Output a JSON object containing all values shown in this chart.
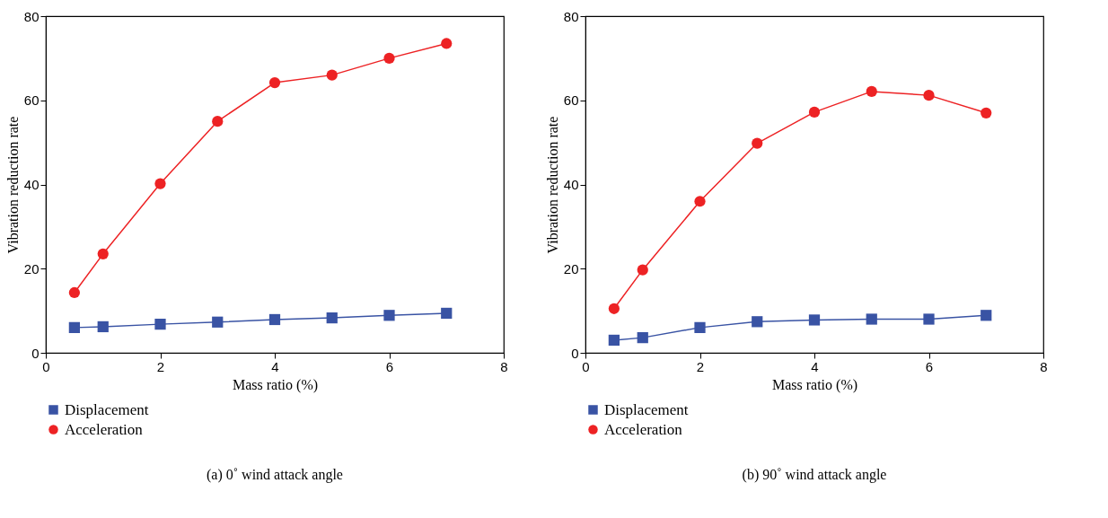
{
  "chart_data": [
    {
      "type": "line",
      "title": "(a)  0˚ wind attack angle",
      "xlabel": "Mass ratio (%)",
      "ylabel": "Vibration reduction rate",
      "x": [
        0.5,
        1,
        2,
        3,
        4,
        5,
        6,
        7
      ],
      "xlim": [
        0,
        8
      ],
      "xticks": [
        0,
        2,
        4,
        6,
        8
      ],
      "ylim": [
        0,
        80
      ],
      "yticks": [
        0,
        20,
        40,
        60,
        80
      ],
      "grid": false,
      "legend": "bottom",
      "line_style": "solid",
      "series": [
        {
          "name": "Displacement",
          "color": "#3953a4",
          "marker": "square",
          "values": [
            6.0,
            6.2,
            6.8,
            7.3,
            7.9,
            8.3,
            8.9,
            9.4
          ]
        },
        {
          "name": "Acceleration",
          "color": "#ed2224",
          "marker": "circle",
          "values": [
            14.3,
            23.5,
            40.2,
            55.0,
            64.2,
            66.0,
            70.0,
            73.5
          ]
        }
      ]
    },
    {
      "type": "line",
      "title": "(b)  90˚ wind attack angle",
      "xlabel": "Mass ratio (%)",
      "ylabel": "Vibration reduction rate",
      "x": [
        0.5,
        1,
        2,
        3,
        4,
        5,
        6,
        7
      ],
      "xlim": [
        0,
        8
      ],
      "xticks": [
        0,
        2,
        4,
        6,
        8
      ],
      "ylim": [
        0,
        80
      ],
      "yticks": [
        0,
        20,
        40,
        60,
        80
      ],
      "grid": false,
      "legend": "bottom",
      "line_style": "solid",
      "series": [
        {
          "name": "Displacement",
          "color": "#3953a4",
          "marker": "square",
          "values": [
            3.0,
            3.6,
            6.0,
            7.4,
            7.8,
            8.0,
            8.0,
            8.9
          ]
        },
        {
          "name": "Acceleration",
          "color": "#ed2224",
          "marker": "circle",
          "values": [
            10.5,
            19.7,
            36.0,
            49.8,
            57.2,
            62.1,
            61.2,
            57.0
          ]
        }
      ]
    }
  ]
}
